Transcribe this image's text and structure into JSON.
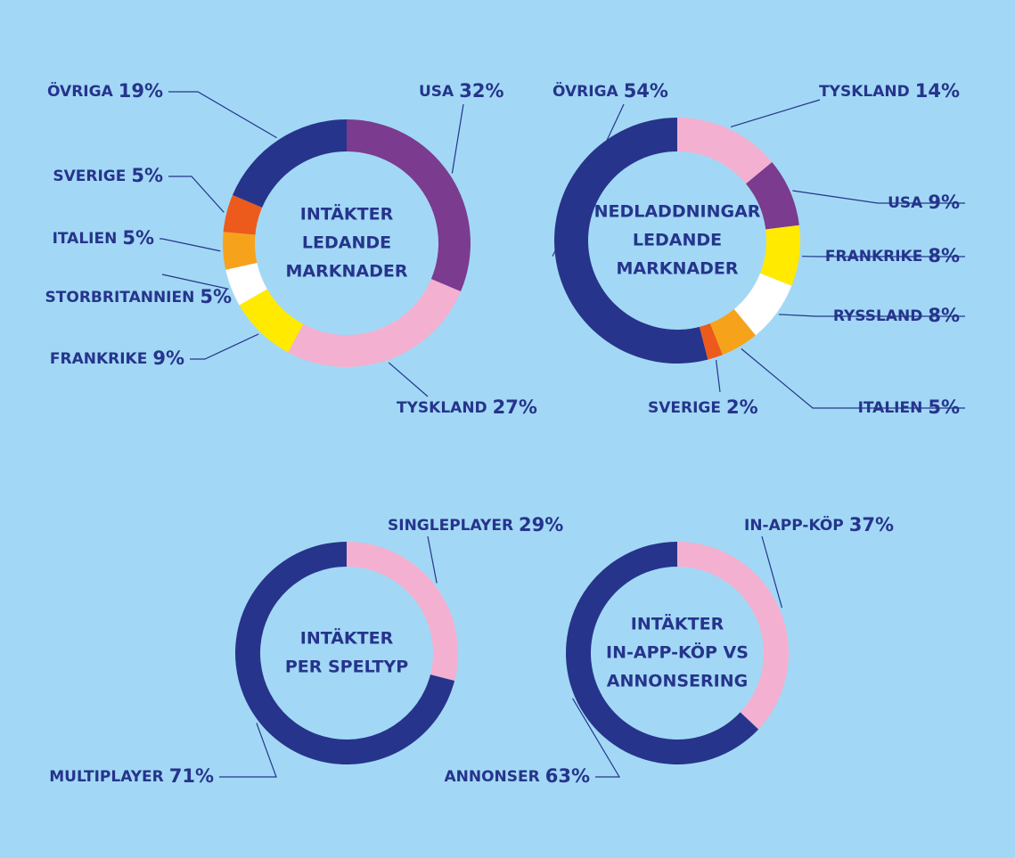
{
  "chart_data": [
    {
      "type": "donut",
      "title": [
        "INTÄKTER",
        "LEDANDE",
        "MARKNADER"
      ],
      "categories": [
        "USA",
        "TYSKLAND",
        "FRANKRIKE",
        "STORBRITANNIEN",
        "ITALIEN",
        "SVERIGE",
        "ÖVRIGA"
      ],
      "values": [
        32,
        27,
        9,
        5,
        5,
        5,
        19
      ],
      "value_labels": [
        "32%",
        "27%",
        "9%",
        "5%",
        "5%",
        "5%",
        "19%"
      ],
      "colors": [
        "#7b3b8f",
        "#f4b0d0",
        "#ffea00",
        "#ffffff",
        "#f6a31b",
        "#ec5a1c",
        "#27348b"
      ]
    },
    {
      "type": "donut",
      "title": [
        "NEDLADDNINGAR",
        "LEDANDE",
        "MARKNADER"
      ],
      "categories": [
        "TYSKLAND",
        "USA",
        "FRANKRIKE",
        "RYSSLAND",
        "ITALIEN",
        "SVERIGE",
        "ÖVRIGA"
      ],
      "values": [
        14,
        9,
        8,
        8,
        5,
        2,
        54
      ],
      "value_labels": [
        "14%",
        "9%",
        "8%",
        "8%",
        "5%",
        "2%",
        "54%"
      ],
      "colors": [
        "#f4b0d0",
        "#7b3b8f",
        "#ffea00",
        "#ffffff",
        "#f6a31b",
        "#ec5a1c",
        "#27348b"
      ]
    },
    {
      "type": "donut",
      "title": [
        "INTÄKTER",
        "PER SPELTYP"
      ],
      "categories": [
        "SINGLEPLAYER",
        "MULTIPLAYER"
      ],
      "values": [
        29,
        71
      ],
      "value_labels": [
        "29%",
        "71%"
      ],
      "colors": [
        "#f4b0d0",
        "#27348b"
      ]
    },
    {
      "type": "donut",
      "title": [
        "INTÄKTER",
        "IN-APP-KÖP VS",
        "ANNONSERING"
      ],
      "categories": [
        "IN-APP-KÖP",
        "ANNONSER"
      ],
      "values": [
        37,
        63
      ],
      "value_labels": [
        "37%",
        "63%"
      ],
      "colors": [
        "#f4b0d0",
        "#27348b"
      ]
    }
  ]
}
